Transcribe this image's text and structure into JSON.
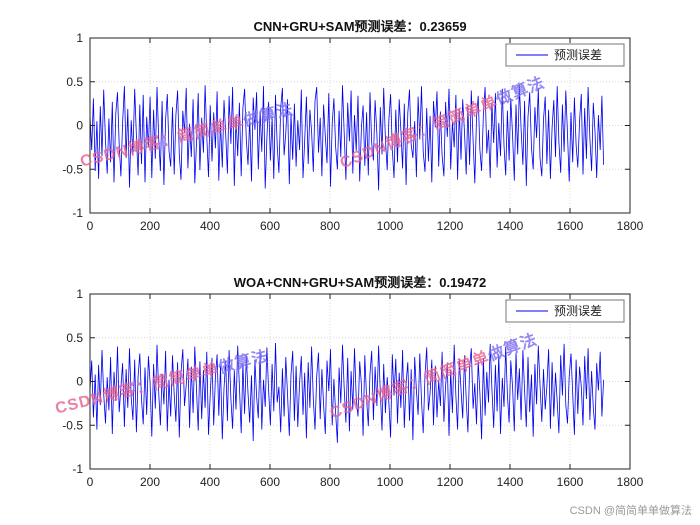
{
  "watermark": {
    "part1": "CSDN博客：简简单单",
    "part2": "做算法",
    "full": "CSDN博客：简简单单做算法"
  },
  "credit": "CSDN @简简单单做算法",
  "chart_data": [
    {
      "type": "line",
      "title": "CNN+GRU+SAM预测误差：0.23659",
      "legend": [
        "预测误差"
      ],
      "line_color": "#0000f0",
      "xlabel": "",
      "ylabel": "",
      "xlim": [
        0,
        1800
      ],
      "ylim": [
        -1,
        1
      ],
      "xticks": [
        0,
        200,
        400,
        600,
        800,
        1000,
        1200,
        1400,
        1600,
        1800
      ],
      "yticks": [
        -1,
        -0.5,
        0,
        0.5,
        1
      ],
      "x_max_data": 1712,
      "values": [
        0.12,
        -0.28,
        0.31,
        -0.52,
        0.05,
        -0.61,
        0.22,
        -0.35,
        0.41,
        -0.18,
        -0.55,
        0.08,
        -0.42,
        0.27,
        -0.65,
        0.14,
        0.38,
        -0.22,
        -0.58,
        0.03,
        0.45,
        -0.37,
        0.19,
        -0.71,
        0.06,
        -0.33,
        0.42,
        -0.12,
        -0.57,
        0.24,
        -0.44,
        0.35,
        -0.65,
        0.1,
        -0.25,
        0.33,
        -0.6,
        0.18,
        -0.38,
        0.44,
        -0.15,
        -0.52,
        0.28,
        -0.68,
        0.07,
        0.36,
        -0.29,
        -0.47,
        0.21,
        -0.56,
        0.12,
        0.4,
        -0.33,
        -0.62,
        0.17,
        -0.08,
        0.43,
        -0.49,
        0.02,
        -0.36,
        0.3,
        -0.66,
        -0.2,
        0.37,
        -0.51,
        0.09,
        -0.31,
        0.46,
        -0.13,
        -0.59,
        0.23,
        -0.41,
        0.15,
        -0.26,
        0.39,
        -0.63,
        0.04,
        -0.48,
        0.29,
        -0.1,
        -0.55,
        0.34,
        -0.21,
        0.44,
        -0.69,
        0.11,
        -0.35,
        0.26,
        -0.58,
        0.2,
        0.42,
        -0.16,
        -0.45,
        0.08,
        -0.64,
        0.32,
        -0.05,
        0.38,
        -0.5,
        0.16,
        -0.3,
        0.45,
        -0.72,
        -0.14,
        0.27,
        -0.4,
        0.1,
        -0.61,
        0.35,
        -0.23,
        -0.54,
        0.2,
        0.43,
        -0.34,
        -0.08,
        0.3,
        -0.67,
        0.13,
        -0.39,
        0.25,
        -0.47,
        0.06,
        -0.28,
        0.41,
        -0.6,
        -0.17,
        0.33,
        -0.44,
        0.18,
        -0.07,
        -0.53,
        0.28,
        0.44,
        -0.31,
        0.09,
        -0.58,
        0.24,
        -0.12,
        -0.43,
        0.37,
        -0.7,
        0.02,
        0.31,
        -0.24,
        -0.5,
        0.17,
        -0.36,
        0.46,
        -0.09,
        -0.62,
        0.26,
        -0.18,
        0.4,
        -0.55,
        0.12,
        -0.29,
        0.34,
        -0.64,
        -0.03,
        0.23,
        -0.46,
        0.15,
        -0.57,
        0.38,
        -0.2,
        -0.4,
        0.29,
        -0.1,
        -0.74,
        0.21,
        -0.33,
        0.43,
        -0.15,
        -0.51,
        0.07,
        0.36,
        -0.27,
        -0.6,
        0.18,
        -0.42,
        0.3,
        -0.06,
        -0.49,
        0.25,
        -0.68,
        0.14,
        0.41,
        -0.22,
        -0.37,
        0.05,
        -0.59,
        0.33,
        -0.16,
        0.45,
        -0.3,
        -0.53,
        0.2,
        -0.41,
        0.11,
        -0.65,
        0.28,
        -0.02,
        0.39,
        -0.47,
        0.16,
        -0.34,
        -0.58,
        0.27,
        -0.13,
        0.42,
        -0.5,
        0.04,
        -0.25,
        0.35,
        -0.62,
        0.19,
        -0.39,
        0.3,
        -0.08,
        -0.56,
        0.22,
        -0.45,
        0.4,
        -0.17,
        -0.66,
        0.09,
        0.34,
        -0.28,
        -0.52,
        0.13,
        0.44,
        -0.32,
        -0.05,
        -0.6,
        0.26,
        -0.2,
        0.37,
        -0.48,
        0.03,
        -0.35,
        0.42,
        -0.23,
        -0.57,
        0.17,
        -0.4,
        0.31,
        -0.12,
        -0.63,
        0.24,
        -0.33,
        0.46,
        -0.04,
        -0.45,
        0.28,
        -0.69,
        0.1,
        0.38,
        -0.26,
        -0.5,
        0.21,
        -0.14,
        0.43,
        -0.37,
        -0.58,
        0.07,
        0.33,
        -0.44,
        0.18,
        -0.61,
        -0.02,
        0.29,
        -0.36,
        0.45,
        -0.19,
        -0.54,
        0.24,
        -0.3,
        0.4,
        -0.1,
        -0.64,
        0.15,
        -0.42,
        0.32,
        -0.22,
        -0.48,
        0.06,
        0.36,
        -0.56,
        0.2,
        -0.38,
        0.44,
        -0.15,
        -0.52,
        0.26,
        -0.07,
        -0.6,
        0.12,
        -0.28,
        0.34,
        -0.45
      ]
    },
    {
      "type": "line",
      "title": "WOA+CNN+GRU+SAM预测误差：0.19472",
      "legend": [
        "预测误差"
      ],
      "line_color": "#0000f0",
      "xlabel": "",
      "ylabel": "",
      "xlim": [
        0,
        1800
      ],
      "ylim": [
        -1,
        1
      ],
      "xticks": [
        0,
        200,
        400,
        600,
        800,
        1000,
        1200,
        1400,
        1600,
        1800
      ],
      "yticks": [
        -1,
        -0.5,
        0,
        0.5,
        1
      ],
      "x_max_data": 1712,
      "values": [
        -0.1,
        0.24,
        -0.41,
        0.08,
        -0.55,
        0.19,
        -0.27,
        0.36,
        -0.14,
        -0.48,
        0.05,
        -0.33,
        0.28,
        -0.6,
        0.11,
        -0.22,
        0.4,
        -0.35,
        -0.07,
        0.21,
        -0.52,
        0.14,
        -0.3,
        0.38,
        -0.18,
        -0.44,
        0.25,
        -0.58,
        0.06,
        0.32,
        -0.2,
        -0.49,
        0.16,
        -0.38,
        0.29,
        -0.02,
        -0.63,
        0.2,
        -0.31,
        0.42,
        -0.12,
        -0.5,
        0.09,
        -0.26,
        0.35,
        -0.57,
        0.02,
        -0.4,
        0.3,
        -0.15,
        -0.46,
        0.22,
        -0.64,
        0.1,
        0.37,
        -0.28,
        -0.04,
        0.26,
        -0.53,
        0.17,
        -0.36,
        0.4,
        -0.09,
        -0.56,
        0.23,
        -0.43,
        0.13,
        -0.3,
        0.34,
        -0.61,
        -0.16,
        0.27,
        -0.5,
        0.05,
        0.31,
        -0.39,
        0.18,
        -0.66,
        -0.08,
        0.24,
        -0.45,
        0.36,
        -0.2,
        -0.54,
        0.12,
        -0.32,
        0.41,
        -0.05,
        -0.59,
        0.21,
        -0.37,
        0.3,
        -0.13,
        -0.47,
        0.07,
        -0.68,
        0.25,
        -0.17,
        -0.42,
        0.33,
        -0.55,
        0.02,
        -0.29,
        0.39,
        -0.1,
        -0.5,
        0.2,
        -0.34,
        0.44,
        -0.24,
        -0.06,
        -0.58,
        0.15,
        -0.4,
        0.28,
        -0.14,
        -0.62,
        0.08,
        0.35,
        -0.45,
        0.18,
        -0.52,
        -0.01,
        0.29,
        -0.38,
        0.1,
        -0.65,
        0.22,
        -0.3,
        0.4,
        -0.2,
        -0.55,
        0.06,
        0.33,
        -0.43,
        0.14,
        -0.27,
        -0.6,
        0.24,
        -0.11,
        0.37,
        -0.5,
        0.03,
        -0.35,
        -0.7,
        0.16,
        -0.25,
        0.42,
        -0.08,
        -0.47,
        0.27,
        -0.57,
        0.12,
        -0.32,
        0.38,
        -0.18,
        -0.4,
        0.23,
        -0.03,
        -0.62,
        0.3,
        -0.2,
        -0.51,
        0.09,
        0.35,
        -0.44,
        0.17,
        -0.28,
        0.41,
        -0.12,
        -0.56,
        0.2,
        -0.36,
        0.05,
        -0.25,
        -0.64,
        0.31,
        -0.16,
        0.26,
        -0.48,
        0.1,
        -0.3,
        0.36,
        -0.53,
        -0.02,
        0.22,
        -0.45,
        0.14,
        -0.67,
        0.28,
        -0.1,
        -0.38,
        0.32,
        -0.22,
        -0.59,
        0.07,
        0.39,
        -0.33,
        -0.13,
        0.25,
        -0.5,
        0.18,
        -0.41,
        0.01,
        -0.28,
        0.34,
        -0.46,
        -0.05,
        0.21,
        -0.62,
        0.13,
        -0.36,
        0.42,
        -0.17,
        -0.55,
        0.26,
        -0.09,
        -0.42,
        0.3,
        -0.2,
        -0.58,
        0.16,
        0.38,
        -0.31,
        -0.02,
        -0.49,
        0.23,
        -0.13,
        -0.66,
        0.27,
        -0.39,
        0.11,
        -0.24,
        0.43,
        -0.08,
        -0.53,
        0.19,
        -0.34,
        0.31,
        -0.6,
        0.04,
        -0.29,
        0.4,
        -0.15,
        -0.47,
        0.24,
        -0.07,
        -0.57,
        0.33,
        -0.21,
        0.15,
        -0.44,
        0.36,
        -0.11,
        -0.52,
        0.28,
        -0.35,
        0.08,
        -0.63,
        0.2,
        -0.26,
        0.41,
        -0.03,
        -0.46,
        0.14,
        -0.32,
        -0.05,
        0.37,
        -0.54,
        0.22,
        -0.4,
        0.1,
        -0.23,
        -0.59,
        0.3,
        -0.16,
        0.43,
        -0.27,
        -0.48,
        0.06,
        0.32,
        -0.14,
        -0.61,
        0.25,
        -0.37,
        0.17,
        -0.06,
        -0.5,
        0.29,
        -0.2,
        0.38,
        -0.44,
        0.12,
        -0.3,
        -0.55,
        0.21,
        -0.1,
        0.34,
        -0.4,
        0.02
      ]
    }
  ]
}
